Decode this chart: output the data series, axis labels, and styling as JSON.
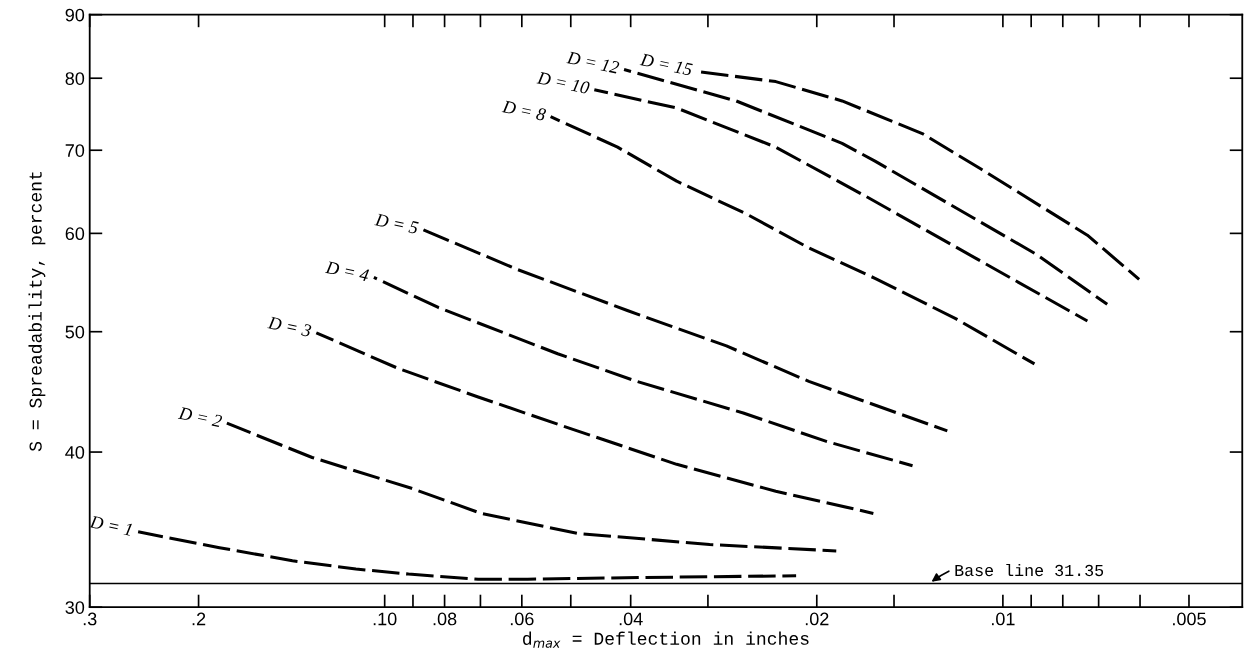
{
  "chart_data": {
    "type": "line",
    "xlabel": "d$_{max}$ = Deflection in inches",
    "ylabel": "S = Spreadability, percent",
    "log": "xy",
    "line_style": "dashed",
    "marker": "none",
    "grid": false,
    "legend": false,
    "xlim": [
      0.3,
      0.0041
    ],
    "ylim": [
      30,
      90
    ],
    "xticks": [
      {
        "value": 0.3,
        "label": ".3"
      },
      {
        "value": 0.2,
        "label": ".2"
      },
      {
        "value": 0.1,
        "label": ".10"
      },
      {
        "value": 0.09,
        "label": null
      },
      {
        "value": 0.08,
        "label": ".08"
      },
      {
        "value": 0.07,
        "label": null
      },
      {
        "value": 0.06,
        "label": ".06"
      },
      {
        "value": 0.05,
        "label": null
      },
      {
        "value": 0.04,
        "label": ".04"
      },
      {
        "value": 0.03,
        "label": null
      },
      {
        "value": 0.02,
        "label": ".02"
      },
      {
        "value": 0.015,
        "label": null
      },
      {
        "value": 0.01,
        "label": ".01"
      },
      {
        "value": 0.009,
        "label": null
      },
      {
        "value": 0.008,
        "label": null
      },
      {
        "value": 0.007,
        "label": null
      },
      {
        "value": 0.006,
        "label": null
      },
      {
        "value": 0.005,
        "label": ".005"
      }
    ],
    "yticks": [
      30,
      40,
      50,
      60,
      70,
      80,
      90
    ],
    "ref_lines": [
      {
        "axis": "y",
        "value": 31.35,
        "label": "Base line 31.35",
        "color": "#000000",
        "line_style": "solid"
      }
    ],
    "series": [
      {
        "name": "D = 1",
        "color": "#000000",
        "x": [
          0.2505,
          0.185,
          0.141,
          0.1113,
          0.0915,
          0.0706,
          0.0587,
          0.038,
          0.0216
        ],
        "values": [
          34.5,
          33.5,
          32.7,
          32.2,
          31.9,
          31.6,
          31.6,
          31.7,
          31.8
        ]
      },
      {
        "name": "D = 2",
        "color": "#000000",
        "x": [
          0.18,
          0.131,
          0.0905,
          0.0698,
          0.0488,
          0.0298,
          0.0186
        ],
        "values": [
          42.2,
          39.6,
          37.4,
          35.7,
          34.4,
          33.7,
          33.3
        ]
      },
      {
        "name": "D = 3",
        "color": "#000000",
        "x": [
          0.129,
          0.095,
          0.0706,
          0.0488,
          0.0337,
          0.0233,
          0.0162
        ],
        "values": [
          49.9,
          46.7,
          44.3,
          41.6,
          39.1,
          37.2,
          35.7
        ]
      },
      {
        "name": "D = 4",
        "color": "#000000",
        "x": [
          0.1041,
          0.0819,
          0.0525,
          0.0391,
          0.0263,
          0.0193,
          0.014
        ],
        "values": [
          55.3,
          52.3,
          48.0,
          45.6,
          43.0,
          40.8,
          39.0
        ]
      },
      {
        "name": "D = 5",
        "color": "#000000",
        "x": [
          0.0866,
          0.0609,
          0.0405,
          0.028,
          0.0206,
          0.0123
        ],
        "values": [
          60.4,
          56.1,
          52.0,
          48.7,
          45.6,
          41.6
        ]
      },
      {
        "name": "D = 8",
        "color": "#000000",
        "x": [
          0.0539,
          0.042,
          0.0337,
          0.026,
          0.0206,
          0.0161,
          0.0119,
          0.00889
        ],
        "values": [
          74.5,
          70.4,
          66.1,
          62.2,
          58.4,
          55.2,
          51.2,
          47.1
        ]
      },
      {
        "name": "D = 10",
        "color": "#000000",
        "x": [
          0.0458,
          0.0337,
          0.0233,
          0.0165,
          0.011,
          0.0073
        ],
        "values": [
          78.3,
          75.7,
          70.4,
          64.1,
          57.2,
          51.0
        ]
      },
      {
        "name": "D = 12",
        "color": "#000000",
        "x": [
          0.041,
          0.027,
          0.0182,
          0.0161,
          0.00882,
          0.00678
        ],
        "values": [
          81.3,
          76.7,
          70.9,
          68.6,
          57.7,
          52.6
        ]
      },
      {
        "name": "D = 15",
        "color": "#000000",
        "x": [
          0.0312,
          0.0233,
          0.0182,
          0.0135,
          0.01085,
          0.0073,
          0.00602
        ],
        "values": [
          81.0,
          79.5,
          76.7,
          72.2,
          67.6,
          59.8,
          55.1
        ]
      }
    ]
  }
}
